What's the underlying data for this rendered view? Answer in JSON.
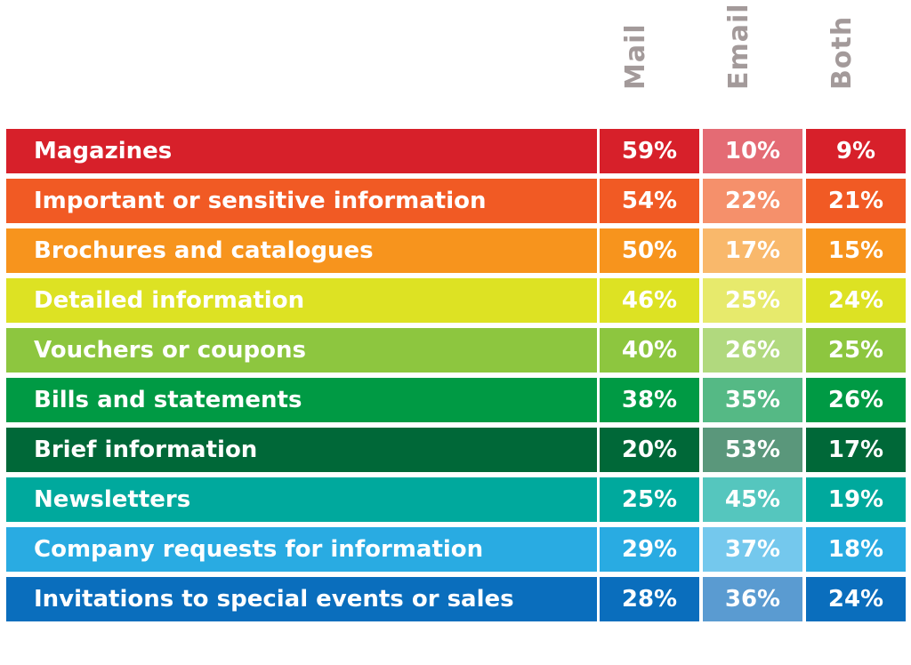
{
  "chart_data": {
    "type": "table",
    "columns": [
      "Mail",
      "Email",
      "Both"
    ],
    "rows": [
      {
        "label": "Magazines",
        "values": [
          "59%",
          "10%",
          "9%"
        ],
        "color": "#d7202a",
        "email_color": "#e46b74"
      },
      {
        "label": "Important or sensitive information",
        "values": [
          "54%",
          "22%",
          "21%"
        ],
        "color": "#f15a24",
        "email_color": "#f5906b"
      },
      {
        "label": "Brochures and catalogues",
        "values": [
          "50%",
          "17%",
          "15%"
        ],
        "color": "#f7941d",
        "email_color": "#f9b86b"
      },
      {
        "label": "Detailed information",
        "values": [
          "46%",
          "25%",
          "24%"
        ],
        "color": "#dde223",
        "email_color": "#e7ea6c"
      },
      {
        "label": "Vouchers or coupons",
        "values": [
          "40%",
          "26%",
          "25%"
        ],
        "color": "#8dc63f",
        "email_color": "#b1d97e"
      },
      {
        "label": "Bills and statements",
        "values": [
          "38%",
          "35%",
          "26%"
        ],
        "color": "#009a44",
        "email_color": "#55b985"
      },
      {
        "label": "Brief information",
        "values": [
          "20%",
          "53%",
          "17%"
        ],
        "color": "#006838",
        "email_color": "#5a977b"
      },
      {
        "label": "Newsletters",
        "values": [
          "25%",
          "45%",
          "19%"
        ],
        "color": "#00a99d",
        "email_color": "#55c6be"
      },
      {
        "label": "Company requests for information",
        "values": [
          "29%",
          "37%",
          "18%"
        ],
        "color": "#29abe2",
        "email_color": "#74c8ed"
      },
      {
        "label": "Invitations to special events or sales",
        "values": [
          "28%",
          "36%",
          "24%"
        ],
        "color": "#0a6ebd",
        "email_color": "#5a9bd1"
      }
    ],
    "header_color": "#a39a9a"
  }
}
